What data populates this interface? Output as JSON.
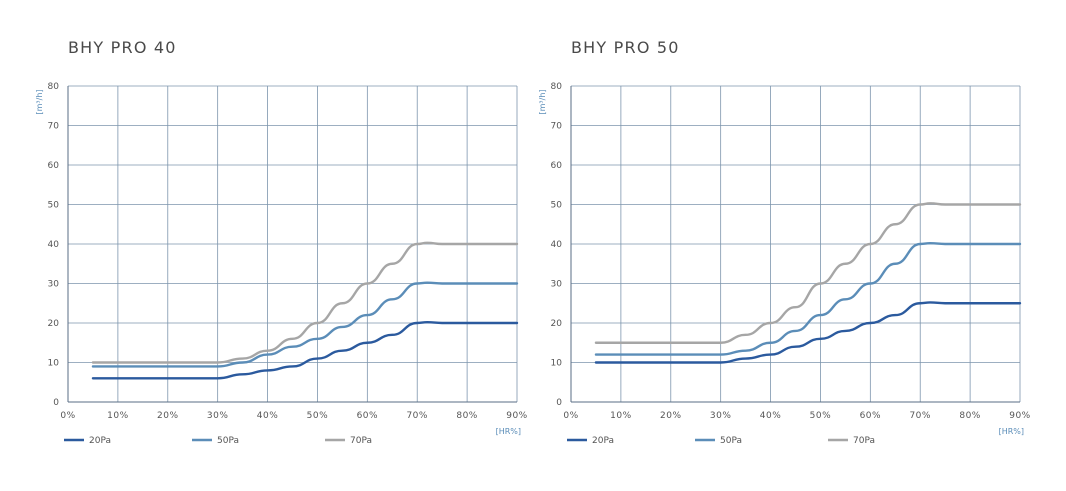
{
  "chart_data": [
    {
      "type": "line",
      "title": "BHY PRO 40",
      "xlabel": "[HR%]",
      "ylabel": "[m³/h]",
      "xlim": [
        0,
        90
      ],
      "ylim": [
        0,
        80
      ],
      "x_ticks": [
        0,
        10,
        20,
        30,
        40,
        50,
        60,
        70,
        80,
        90
      ],
      "x_tick_labels": [
        "0%",
        "10%",
        "20%",
        "30%",
        "40%",
        "50%",
        "60%",
        "70%",
        "80%",
        "90%"
      ],
      "y_ticks": [
        0,
        10,
        20,
        30,
        40,
        50,
        60,
        70,
        80
      ],
      "y_tick_labels": [
        "0",
        "10",
        "20",
        "30",
        "40",
        "50",
        "60",
        "70",
        "80"
      ],
      "grid": true,
      "legend": "bottom",
      "series": [
        {
          "name": "20Pa",
          "color": "#2b5a9e",
          "x": [
            5,
            10,
            20,
            25,
            30,
            35,
            40,
            45,
            50,
            55,
            60,
            65,
            70,
            72,
            75,
            80,
            90
          ],
          "y": [
            6,
            6,
            6,
            6,
            6,
            7,
            8,
            9,
            11,
            13,
            15,
            17,
            20,
            20.2,
            20,
            20,
            20
          ]
        },
        {
          "name": "50Pa",
          "color": "#5b8db8",
          "x": [
            5,
            10,
            20,
            25,
            30,
            35,
            40,
            45,
            50,
            55,
            60,
            65,
            70,
            72,
            75,
            80,
            90
          ],
          "y": [
            9,
            9,
            9,
            9,
            9,
            10,
            12,
            14,
            16,
            19,
            22,
            26,
            30,
            30.2,
            30,
            30,
            30
          ]
        },
        {
          "name": "70Pa",
          "color": "#a6a6a6",
          "x": [
            5,
            10,
            20,
            25,
            30,
            35,
            40,
            45,
            50,
            55,
            60,
            65,
            70,
            72,
            75,
            80,
            90
          ],
          "y": [
            10,
            10,
            10,
            10,
            10,
            11,
            13,
            16,
            20,
            25,
            30,
            35,
            40,
            40.3,
            40,
            40,
            40
          ]
        }
      ]
    },
    {
      "type": "line",
      "title": "BHY PRO 50",
      "xlabel": "[HR%]",
      "ylabel": "[m³/h]",
      "xlim": [
        0,
        90
      ],
      "ylim": [
        0,
        80
      ],
      "x_ticks": [
        0,
        10,
        20,
        30,
        40,
        50,
        60,
        70,
        80,
        90
      ],
      "x_tick_labels": [
        "0%",
        "10%",
        "20%",
        "30%",
        "40%",
        "50%",
        "60%",
        "70%",
        "80%",
        "90%"
      ],
      "y_ticks": [
        0,
        10,
        20,
        30,
        40,
        50,
        60,
        70,
        80
      ],
      "y_tick_labels": [
        "0",
        "10",
        "20",
        "30",
        "40",
        "50",
        "60",
        "70",
        "80"
      ],
      "grid": true,
      "legend": "bottom",
      "series": [
        {
          "name": "20Pa",
          "color": "#2b5a9e",
          "x": [
            5,
            10,
            20,
            25,
            30,
            35,
            40,
            45,
            50,
            55,
            60,
            65,
            70,
            72,
            75,
            80,
            90
          ],
          "y": [
            10,
            10,
            10,
            10,
            10,
            11,
            12,
            14,
            16,
            18,
            20,
            22,
            25,
            25.2,
            25,
            25,
            25
          ]
        },
        {
          "name": "50Pa",
          "color": "#5b8db8",
          "x": [
            5,
            10,
            20,
            25,
            30,
            35,
            40,
            45,
            50,
            55,
            60,
            65,
            70,
            72,
            75,
            80,
            90
          ],
          "y": [
            12,
            12,
            12,
            12,
            12,
            13,
            15,
            18,
            22,
            26,
            30,
            35,
            40,
            40.2,
            40,
            40,
            40
          ]
        },
        {
          "name": "70Pa",
          "color": "#a6a6a6",
          "x": [
            5,
            10,
            20,
            25,
            30,
            35,
            40,
            45,
            50,
            55,
            60,
            65,
            70,
            72,
            75,
            80,
            90
          ],
          "y": [
            15,
            15,
            15,
            15,
            15,
            17,
            20,
            24,
            30,
            35,
            40,
            45,
            50,
            50.3,
            50,
            50,
            50
          ]
        }
      ]
    }
  ]
}
